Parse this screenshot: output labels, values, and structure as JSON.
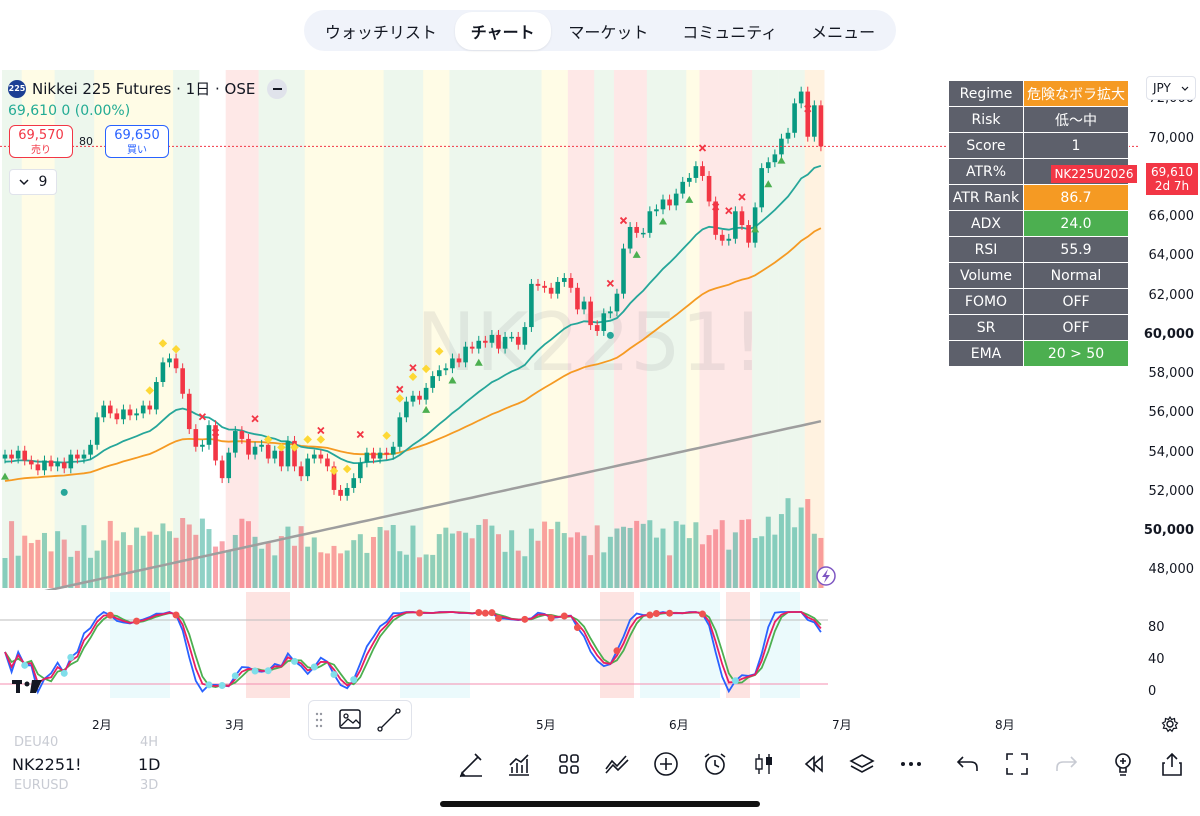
{
  "nav": {
    "tabs": [
      {
        "label": "ウォッチリスト",
        "active": false
      },
      {
        "label": "チャート",
        "active": true
      },
      {
        "label": "マーケット",
        "active": false
      },
      {
        "label": "コミュニティ",
        "active": false
      },
      {
        "label": "メニュー",
        "active": false
      }
    ]
  },
  "symbol": {
    "badge": "225",
    "title": "Nikkei 225 Futures · 1日 · OSE",
    "price_line": "69,610  0 (0.00%)",
    "sell_price": "69,570",
    "sell_label": "売り",
    "buy_price": "69,650",
    "buy_label": "買い",
    "spread": "80",
    "collapse_count": "9",
    "watermark": "NK2251!"
  },
  "currency": "JPY",
  "current_price": {
    "value": "69,610",
    "countdown": "2d 7h",
    "contract": "NK225U2026"
  },
  "info_table": [
    {
      "k": "Regime",
      "v": "危険なボラ拡大",
      "color": "#f59a23"
    },
    {
      "k": "Risk",
      "v": "低〜中",
      "color": "#5d606b"
    },
    {
      "k": "Score",
      "v": "1",
      "color": "#5d606b"
    },
    {
      "k": "ATR%",
      "v": "",
      "color": "#5d606b"
    },
    {
      "k": "ATR Rank",
      "v": "86.7",
      "color": "#f59a23"
    },
    {
      "k": "ADX",
      "v": "24.0",
      "color": "#4caf50"
    },
    {
      "k": "RSI",
      "v": "55.9",
      "color": "#5d606b"
    },
    {
      "k": "Volume",
      "v": "Normal",
      "color": "#5d606b"
    },
    {
      "k": "FOMO",
      "v": "OFF",
      "color": "#5d606b"
    },
    {
      "k": "SR",
      "v": "OFF",
      "color": "#5d606b"
    },
    {
      "k": "EMA",
      "v": "20 > 50",
      "color": "#4caf50"
    }
  ],
  "price_axis": [
    "72,000",
    "70,000",
    "68,000",
    "66,000",
    "64,000",
    "62,000",
    "60,000",
    "58,000",
    "56,000",
    "54,000",
    "52,000",
    "50,000",
    "48,000"
  ],
  "osc_axis": [
    "80",
    "40",
    "0"
  ],
  "months": [
    "2月",
    "3月",
    "5月",
    "6月",
    "7月",
    "8月"
  ],
  "bottom": {
    "symbol": "NK2251!",
    "interval": "1D",
    "ghost_symbols": [
      "DEU40",
      "EURUSD"
    ],
    "ghost_intervals": [
      "4H",
      "3D"
    ]
  },
  "icons": [
    "pen-icon",
    "indicators-icon",
    "grid-icon",
    "compare-icon",
    "plus-circle-icon",
    "alarm-icon",
    "candles-icon",
    "replay-icon",
    "layers-icon",
    "more-icon",
    "undo-icon",
    "fullscreen-icon",
    "redo-icon",
    "lightbulb-icon",
    "share-icon"
  ],
  "colors": {
    "up": "#089981",
    "down": "#f23645",
    "ema20": "#26a69a",
    "ema50": "#f59a23",
    "ema200": "#9e9e9e",
    "k": "#2962ff",
    "d": "#e91e63",
    "green_line": "#4caf50"
  },
  "chart_data": {
    "type": "candlestick",
    "ylim": [
      47000,
      73500
    ],
    "last": 69610,
    "closes": [
      53900,
      53700,
      54100,
      53600,
      53400,
      53100,
      53600,
      53300,
      53500,
      53200,
      53900,
      53700,
      53900,
      54400,
      55800,
      56400,
      56000,
      55700,
      56200,
      55900,
      56000,
      56400,
      56200,
      57600,
      58600,
      58800,
      58300,
      57000,
      55200,
      54300,
      54400,
      55400,
      53600,
      52700,
      54000,
      55100,
      54700,
      53900,
      54300,
      54400,
      53700,
      54100,
      53300,
      54600,
      53300,
      52800,
      53700,
      53900,
      53700,
      53300,
      52100,
      51800,
      52200,
      52700,
      53500,
      54000,
      53700,
      54000,
      53900,
      54300,
      55800,
      56600,
      56900,
      56700,
      57300,
      57900,
      58200,
      58300,
      58800,
      58600,
      59400,
      59300,
      59700,
      59600,
      60000,
      59300,
      59900,
      59900,
      59500,
      60400,
      62600,
      62500,
      62400,
      62100,
      62700,
      62900,
      62400,
      61300,
      61700,
      60500,
      60200,
      61100,
      61200,
      62100,
      64400,
      65500,
      65200,
      65200,
      66300,
      66400,
      66900,
      66600,
      67200,
      67800,
      68000,
      68600,
      68100,
      66800,
      65100,
      64800,
      64900,
      66300,
      65600,
      64700,
      66500,
      68500,
      68800,
      69200,
      70000,
      70300,
      71800,
      72400,
      70100,
      71700,
      69610
    ],
    "ema20_end": 68600,
    "ema50_end": 64000,
    "ema200_end": 55600,
    "oscillator": {
      "type": "stochastic",
      "ylim": [
        0,
        100
      ]
    }
  }
}
